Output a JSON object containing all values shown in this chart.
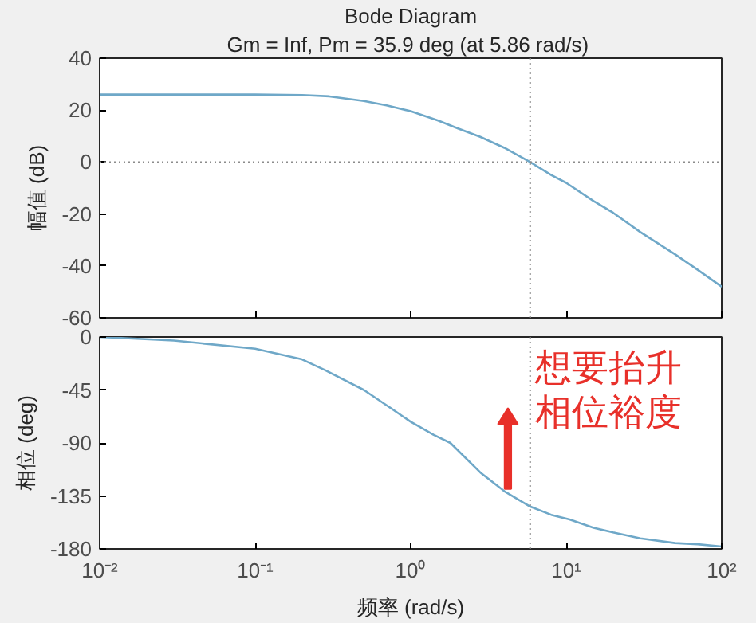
{
  "chart_data": [
    {
      "type": "line",
      "title": "Bode Diagram",
      "subtitle": "Gm = Inf,  Pm = 35.9 deg (at 5.86 rad/s)",
      "ylabel": "幅值 (dB)",
      "log": "x",
      "grid": false,
      "tick_labels": "y",
      "xlim": [
        0.01,
        100
      ],
      "xticks": [
        {
          "value": 0.01,
          "label": null
        },
        {
          "value": 0.1,
          "label": null
        },
        {
          "value": 1,
          "label": null
        },
        {
          "value": 10,
          "label": null
        },
        {
          "value": 100,
          "label": null
        }
      ],
      "ylim": [
        -60,
        40
      ],
      "yticks": [
        -60,
        -40,
        -20,
        0,
        20,
        40
      ],
      "series": [
        {
          "color": "#6fa8c8",
          "x": [
            0.01,
            0.03,
            0.1,
            0.2,
            0.3,
            0.5,
            0.7,
            1,
            1.5,
            2,
            2.8,
            4,
            5.86,
            8,
            10,
            15,
            20,
            30,
            50,
            70,
            100
          ],
          "values": [
            26,
            26,
            26,
            25.8,
            25.3,
            23.5,
            21.8,
            19.6,
            16,
            13,
            9.7,
            5.5,
            0,
            -5,
            -8,
            -15,
            -19.5,
            -27,
            -35.5,
            -41.5,
            -48
          ]
        }
      ],
      "ref_lines": [
        {
          "axis": "y",
          "value": 0,
          "color": "#8c8c8c",
          "line_style": "dotted"
        },
        {
          "axis": "x",
          "value": 5.86,
          "color": "#8c8c8c",
          "line_style": "dotted"
        }
      ]
    },
    {
      "type": "line",
      "ylabel": "相位 (deg)",
      "xlabel": "频率 (rad/s)",
      "log": "x",
      "grid": false,
      "xlim": [
        0.01,
        100
      ],
      "xticks": [
        {
          "value": 0.01,
          "label": "10⁻²"
        },
        {
          "value": 0.1,
          "label": "10⁻¹"
        },
        {
          "value": 1,
          "label": "10⁰"
        },
        {
          "value": 10,
          "label": "10¹"
        },
        {
          "value": 100,
          "label": "10²"
        }
      ],
      "ylim": [
        -180,
        0
      ],
      "yticks": [
        -180,
        -135,
        -90,
        -45,
        0
      ],
      "series": [
        {
          "color": "#6fa8c8",
          "x": [
            0.01,
            0.03,
            0.1,
            0.2,
            0.28,
            0.5,
            0.7,
            1,
            1.4,
            1.8,
            2.8,
            4,
            5.86,
            8,
            10.5,
            15,
            20,
            30,
            50,
            70,
            100
          ],
          "values": [
            0,
            -3,
            -10,
            -19,
            -28,
            -45,
            -58,
            -72,
            -83,
            -90,
            -115,
            -131,
            -144,
            -151,
            -155,
            -162,
            -166,
            -171,
            -175,
            -176,
            -178
          ]
        }
      ],
      "ref_lines": [
        {
          "axis": "x",
          "value": 5.86,
          "color": "#8c8c8c",
          "line_style": "dotted"
        }
      ],
      "annotations": [
        {
          "text": "想要抬升相位裕度",
          "x": 5.86,
          "y": -144
        }
      ]
    }
  ]
}
